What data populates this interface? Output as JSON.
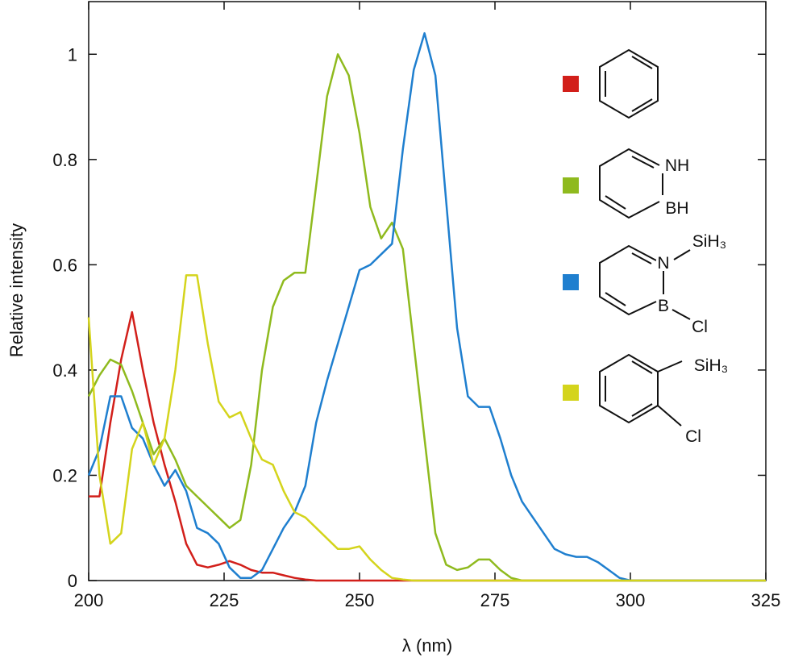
{
  "chart_data": {
    "type": "line",
    "xlabel": "λ (nm)",
    "ylabel": "Relative intensity",
    "x": [
      200,
      202,
      204,
      206,
      208,
      210,
      212,
      214,
      216,
      218,
      220,
      222,
      224,
      226,
      228,
      230,
      232,
      234,
      236,
      238,
      240,
      242,
      244,
      246,
      248,
      250,
      252,
      254,
      256,
      258,
      260,
      262,
      264,
      266,
      268,
      270,
      272,
      274,
      276,
      278,
      280,
      282,
      284,
      286,
      288,
      290,
      292,
      294,
      296,
      298,
      300,
      325
    ],
    "xlim": [
      200,
      325
    ],
    "xticks": [
      200,
      225,
      250,
      275,
      300,
      325
    ],
    "ylim": [
      0,
      1.1
    ],
    "yticks": [
      0,
      0.2,
      0.4,
      0.6,
      0.8,
      1
    ],
    "series": [
      {
        "color": "#d21f1a",
        "values": [
          0.16,
          0.16,
          0.3,
          0.42,
          0.51,
          0.4,
          0.3,
          0.22,
          0.15,
          0.07,
          0.03,
          0.025,
          0.03,
          0.037,
          0.03,
          0.02,
          0.015,
          0.015,
          0.01,
          0.005,
          0.002,
          0,
          0,
          0,
          0,
          0,
          0,
          0,
          0,
          0,
          0,
          0,
          0,
          0,
          0,
          0,
          0,
          0,
          0,
          0,
          0,
          0,
          0,
          0,
          0,
          0,
          0,
          0,
          0,
          0,
          0,
          0
        ]
      },
      {
        "color": "#8fba1e",
        "legend_labels": [
          "NH",
          "BH"
        ],
        "values": [
          0.35,
          0.39,
          0.42,
          0.41,
          0.36,
          0.3,
          0.24,
          0.27,
          0.23,
          0.18,
          0.16,
          0.14,
          0.12,
          0.1,
          0.115,
          0.22,
          0.4,
          0.52,
          0.57,
          0.585,
          0.585,
          0.75,
          0.92,
          1.0,
          0.96,
          0.85,
          0.71,
          0.65,
          0.68,
          0.63,
          0.45,
          0.27,
          0.09,
          0.03,
          0.02,
          0.025,
          0.04,
          0.04,
          0.02,
          0.005,
          0,
          0,
          0,
          0,
          0,
          0,
          0,
          0,
          0,
          0,
          0,
          0
        ]
      },
      {
        "color": "#1f7fcf",
        "legend_labels": [
          "N",
          "SiH₃",
          "B",
          "Cl"
        ],
        "values": [
          0.2,
          0.25,
          0.35,
          0.35,
          0.29,
          0.27,
          0.22,
          0.18,
          0.21,
          0.17,
          0.1,
          0.09,
          0.07,
          0.025,
          0.005,
          0.005,
          0.02,
          0.06,
          0.1,
          0.13,
          0.18,
          0.3,
          0.38,
          0.45,
          0.52,
          0.59,
          0.6,
          0.62,
          0.64,
          0.82,
          0.97,
          1.04,
          0.96,
          0.72,
          0.48,
          0.35,
          0.33,
          0.33,
          0.27,
          0.2,
          0.15,
          0.12,
          0.09,
          0.06,
          0.05,
          0.045,
          0.045,
          0.035,
          0.02,
          0.005,
          0,
          0
        ]
      },
      {
        "color": "#d4d41c",
        "legend_labels": [
          "SiH₃",
          "Cl"
        ],
        "values": [
          0.5,
          0.2,
          0.07,
          0.09,
          0.25,
          0.3,
          0.22,
          0.27,
          0.4,
          0.58,
          0.58,
          0.45,
          0.34,
          0.31,
          0.32,
          0.27,
          0.23,
          0.22,
          0.17,
          0.13,
          0.12,
          0.1,
          0.08,
          0.06,
          0.06,
          0.065,
          0.04,
          0.02,
          0.005,
          0.002,
          0,
          0,
          0,
          0,
          0,
          0,
          0,
          0,
          0,
          0,
          0,
          0,
          0,
          0,
          0,
          0,
          0,
          0,
          0,
          0,
          0,
          0
        ]
      }
    ]
  }
}
